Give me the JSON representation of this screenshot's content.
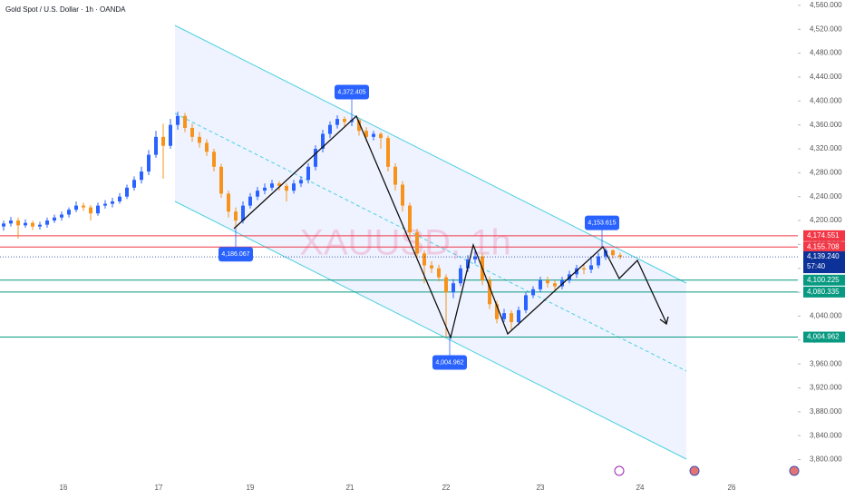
{
  "chart_data": {
    "type": "candlestick",
    "title": "Gold Spot / U.S. Dollar · 1h · OANDA",
    "watermark": "XAUUSD, 1h",
    "up_color": "#2962ff",
    "down_color": "#f7931a",
    "grid": false,
    "xlim": [
      0,
      220
    ],
    "ylim": [
      3772,
      4569
    ],
    "xticks": [
      {
        "value": 17.5,
        "label": "16"
      },
      {
        "value": 43.75,
        "label": "17"
      },
      {
        "value": 69,
        "label": "19"
      },
      {
        "value": 96.5,
        "label": "21"
      },
      {
        "value": 123,
        "label": "22"
      },
      {
        "value": 149,
        "label": "23"
      },
      {
        "value": 176.5,
        "label": "24"
      },
      {
        "value": 201.75,
        "label": "26"
      }
    ],
    "yticks": [
      {
        "value": 3800,
        "label": "3,800.000"
      },
      {
        "value": 3840,
        "label": "3,840.000"
      },
      {
        "value": 3880,
        "label": "3,880.000"
      },
      {
        "value": 3920,
        "label": "3,920.000"
      },
      {
        "value": 3960,
        "label": "3,960.000"
      },
      {
        "value": 4000,
        "label": "4,000.000"
      },
      {
        "value": 4040,
        "label": "4,040.000"
      },
      {
        "value": 4080,
        "label": "4,080.000"
      },
      {
        "value": 4120,
        "label": "4,120.000"
      },
      {
        "value": 4160,
        "label": "4,160.000"
      },
      {
        "value": 4200,
        "label": "4,200.000"
      },
      {
        "value": 4240,
        "label": "4,240.000"
      },
      {
        "value": 4280,
        "label": "4,280.000"
      },
      {
        "value": 4320,
        "label": "4,320.000"
      },
      {
        "value": 4360,
        "label": "4,360.000"
      },
      {
        "value": 4400,
        "label": "4,400.000"
      },
      {
        "value": 4440,
        "label": "4,440.000"
      },
      {
        "value": 4480,
        "label": "4,480.000"
      },
      {
        "value": 4520,
        "label": "4,520.000"
      },
      {
        "value": 4560,
        "label": "4,560.000"
      }
    ],
    "x": [
      1,
      3,
      5,
      7,
      9,
      11,
      13,
      15,
      17,
      19,
      21,
      23,
      25,
      27,
      29,
      31,
      33,
      35,
      37,
      39,
      41,
      43,
      45,
      47,
      49,
      51,
      53,
      55,
      57,
      59,
      61,
      63,
      65,
      67,
      69,
      71,
      73,
      75,
      77,
      79,
      81,
      83,
      85,
      87,
      89,
      91,
      93,
      95,
      97,
      99,
      101,
      103,
      105,
      107,
      109,
      111,
      113,
      115,
      117,
      119,
      121,
      123,
      125,
      127,
      129,
      131,
      133,
      135,
      137,
      139,
      141,
      143,
      145,
      147,
      149,
      151,
      153,
      155,
      157,
      159,
      161,
      163,
      165,
      167,
      169,
      171
    ],
    "open": [
      4190,
      4195,
      4200,
      4192,
      4196,
      4190,
      4193,
      4200,
      4205,
      4210,
      4218,
      4225,
      4222,
      4212,
      4225,
      4228,
      4232,
      4240,
      4255,
      4268,
      4282,
      4310,
      4340,
      4325,
      4360,
      4375,
      4355,
      4340,
      4330,
      4315,
      4290,
      4245,
      4215,
      4200,
      4225,
      4240,
      4250,
      4255,
      4262,
      4258,
      4250,
      4262,
      4268,
      4290,
      4320,
      4345,
      4360,
      4370,
      4365,
      4368,
      4350,
      4340,
      4345,
      4338,
      4290,
      4260,
      4225,
      4180,
      4145,
      4125,
      4120,
      4105,
      4080,
      4095,
      4120,
      4135,
      4140,
      4100,
      4060,
      4035,
      4045,
      4030,
      4050,
      4075,
      4085,
      4100,
      4095,
      4090,
      4100,
      4110,
      4120,
      4118,
      4125,
      4140,
      4150,
      4142
    ],
    "high": [
      4200,
      4206,
      4205,
      4202,
      4200,
      4198,
      4205,
      4210,
      4215,
      4222,
      4232,
      4230,
      4226,
      4230,
      4234,
      4238,
      4246,
      4260,
      4274,
      4290,
      4318,
      4350,
      4362,
      4370,
      4382,
      4380,
      4362,
      4348,
      4336,
      4320,
      4295,
      4250,
      4222,
      4232,
      4246,
      4256,
      4262,
      4268,
      4266,
      4262,
      4268,
      4274,
      4296,
      4326,
      4352,
      4366,
      4376,
      4374,
      4372.405,
      4370,
      4356,
      4350,
      4348,
      4342,
      4296,
      4266,
      4230,
      4186,
      4150,
      4132,
      4126,
      4110,
      4102,
      4126,
      4142,
      4153,
      4146,
      4106,
      4066,
      4052,
      4050,
      4056,
      4080,
      4090,
      4106,
      4106,
      4100,
      4106,
      4116,
      4126,
      4128,
      4140,
      4146,
      4153.615,
      4152,
      4146
    ],
    "low": [
      4183,
      4190,
      4170,
      4188,
      4184,
      4185,
      4188,
      4196,
      4200,
      4205,
      4214,
      4216,
      4200,
      4208,
      4220,
      4222,
      4228,
      4236,
      4250,
      4262,
      4276,
      4305,
      4270,
      4320,
      4352,
      4348,
      4332,
      4322,
      4308,
      4282,
      4238,
      4205,
      4186.067,
      4195,
      4220,
      4234,
      4244,
      4250,
      4250,
      4232,
      4245,
      4256,
      4262,
      4284,
      4314,
      4338,
      4354,
      4356,
      4358,
      4342,
      4332,
      4334,
      4320,
      4282,
      4250,
      4215,
      4170,
      4135,
      4095,
      4112,
      4098,
      4004.962,
      4070,
      4090,
      4114,
      4128,
      4092,
      4052,
      4028,
      4030,
      4015,
      4025,
      4045,
      4070,
      4080,
      4088,
      4084,
      4085,
      4095,
      4104,
      4110,
      4112,
      4120,
      4134,
      4136,
      4135
    ],
    "close": [
      4195,
      4200,
      4192,
      4196,
      4190,
      4193,
      4200,
      4205,
      4210,
      4218,
      4225,
      4222,
      4212,
      4225,
      4228,
      4232,
      4240,
      4255,
      4268,
      4282,
      4310,
      4340,
      4325,
      4360,
      4375,
      4355,
      4340,
      4330,
      4315,
      4290,
      4245,
      4215,
      4200,
      4225,
      4240,
      4250,
      4255,
      4262,
      4258,
      4250,
      4262,
      4268,
      4290,
      4320,
      4345,
      4360,
      4370,
      4365,
      4368,
      4350,
      4340,
      4345,
      4338,
      4290,
      4260,
      4225,
      4180,
      4145,
      4125,
      4120,
      4105,
      4080,
      4095,
      4120,
      4135,
      4140,
      4100,
      4060,
      4035,
      4045,
      4030,
      4050,
      4075,
      4085,
      4100,
      4095,
      4090,
      4100,
      4110,
      4120,
      4118,
      4125,
      4140,
      4150,
      4142,
      4139.24
    ],
    "levels": [
      {
        "value": 4174.551,
        "label": "4,174.551",
        "color": "#f23645"
      },
      {
        "value": 4155.708,
        "label": "4,155.708",
        "color": "#f23645"
      },
      {
        "value": 4100.225,
        "label": "4,100.225",
        "color": "#089981"
      },
      {
        "value": 4080.335,
        "label": "4,080.335",
        "color": "#089981"
      },
      {
        "value": 4004.962,
        "label": "4,004.962",
        "color": "#089981"
      }
    ],
    "last": {
      "value": 4139.24,
      "label": "4,139.240",
      "countdown": "57:40",
      "color": "#0c3299"
    },
    "callouts": [
      {
        "x": 97,
        "value": 4372.405,
        "label": "4,372.405"
      },
      {
        "x": 65,
        "value": 4186.067,
        "label": "4,186.067"
      },
      {
        "x": 124,
        "value": 4004.962,
        "label": "4,004.962"
      },
      {
        "x": 166,
        "value": 4153.615,
        "label": "4,153.615"
      }
    ]
  }
}
